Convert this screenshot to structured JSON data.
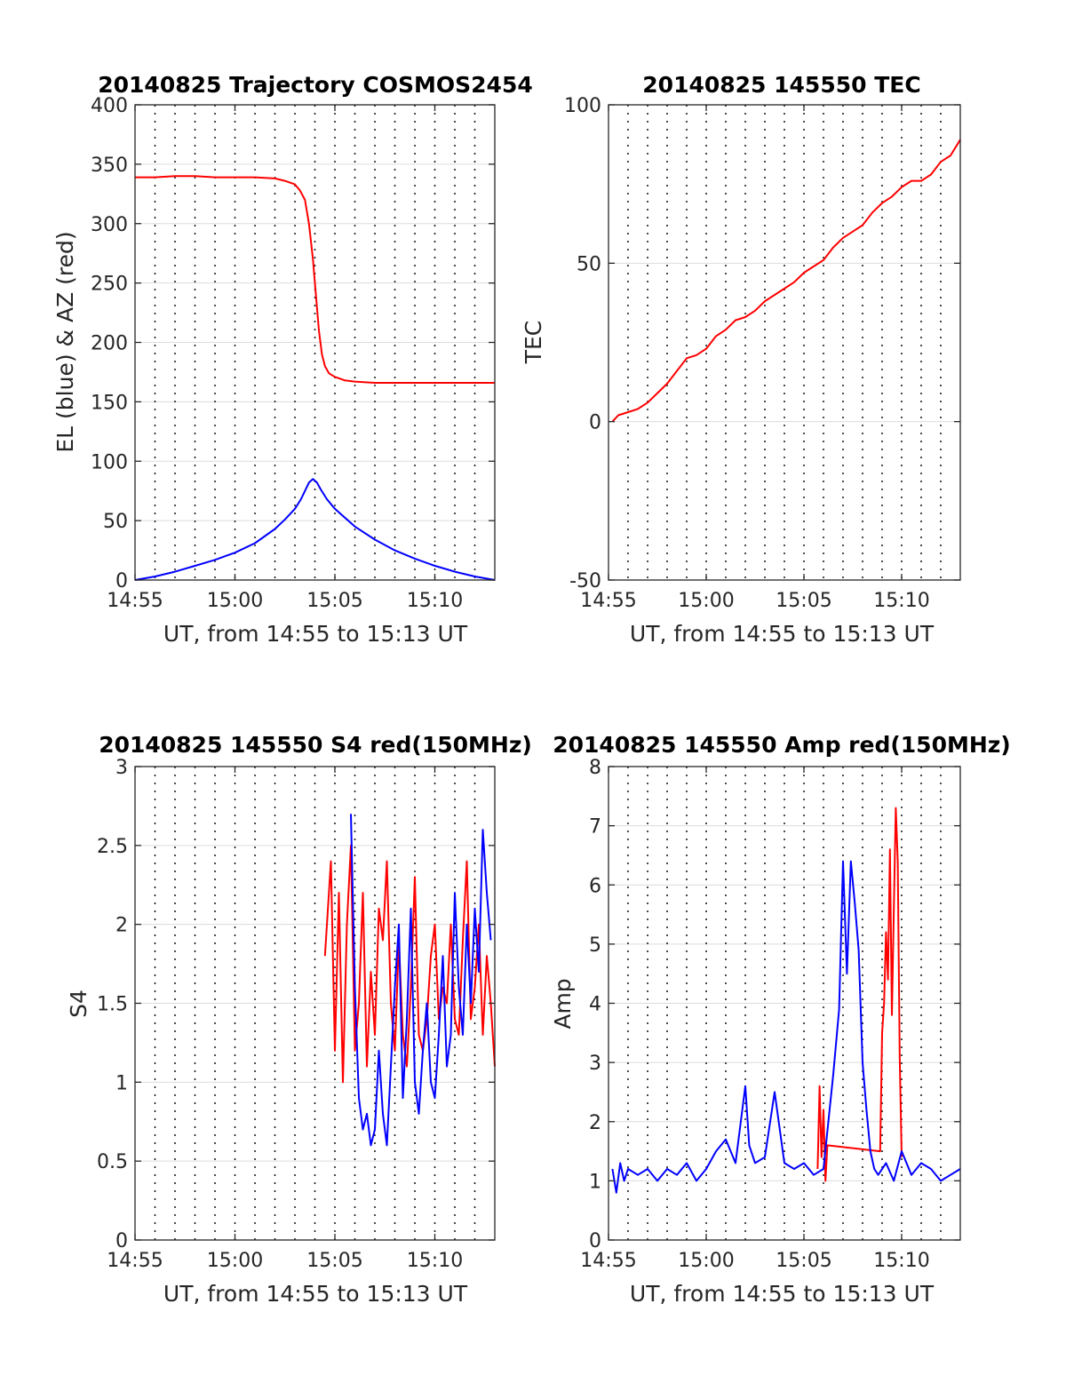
{
  "colors": {
    "red": "#ff0000",
    "blue": "#0000ff",
    "axis": "#262626",
    "hgrid": "#dcdcdc",
    "vgrid": "#000000"
  },
  "chart_data": [
    {
      "type": "line",
      "title": "20140825 Trajectory COSMOS2454",
      "xlabel": "UT, from 14:55 to 15:13 UT",
      "ylabel": "EL (blue) & AZ (red)",
      "x_unit": "minutes after 14:55",
      "xlim": [
        0,
        18
      ],
      "ylim": [
        0,
        400
      ],
      "xticks": [
        0,
        5,
        10,
        15
      ],
      "xtick_labels": [
        "14:55",
        "15:00",
        "15:05",
        "15:10"
      ],
      "yticks": [
        0,
        50,
        100,
        150,
        200,
        250,
        300,
        350,
        400
      ],
      "ytick_labels": [
        "0",
        "50",
        "100",
        "150",
        "200",
        "250",
        "300",
        "350",
        "400"
      ],
      "grid": "on",
      "series": [
        {
          "color": "#ff0000",
          "x": [
            0,
            1,
            2,
            3,
            4,
            5,
            6,
            7,
            7.5,
            8,
            8.25,
            8.5,
            8.7,
            8.9,
            9.05,
            9.2,
            9.35,
            9.5,
            9.7,
            10,
            10.5,
            11,
            12,
            13,
            14,
            15,
            16,
            17,
            18
          ],
          "y": [
            339,
            339,
            340,
            340,
            339,
            339,
            339,
            338,
            336,
            333,
            328,
            320,
            300,
            270,
            240,
            210,
            190,
            180,
            174,
            171,
            168,
            167,
            166,
            166,
            166,
            166,
            166,
            166,
            166
          ]
        },
        {
          "color": "#0000ff",
          "x": [
            0,
            1,
            2,
            3,
            4,
            5,
            6,
            7,
            7.5,
            8,
            8.3,
            8.5,
            8.7,
            8.9,
            9.1,
            9.3,
            9.6,
            10,
            11,
            12,
            13,
            14,
            15,
            16,
            17,
            18
          ],
          "y": [
            0,
            3,
            7,
            12,
            17,
            23,
            31,
            43,
            51,
            60,
            68,
            75,
            82,
            85,
            82,
            76,
            68,
            60,
            45,
            34,
            25,
            18,
            12,
            7,
            3,
            0
          ]
        }
      ]
    },
    {
      "type": "line",
      "title": "20140825 145550 TEC",
      "xlabel": "UT, from 14:55 to 15:13 UT",
      "ylabel": "TEC",
      "x_unit": "minutes after 14:55",
      "xlim": [
        0,
        18
      ],
      "ylim": [
        -50,
        100
      ],
      "xticks": [
        0,
        5,
        10,
        15
      ],
      "xtick_labels": [
        "14:55",
        "15:00",
        "15:05",
        "15:10"
      ],
      "yticks": [
        -50,
        0,
        50,
        100
      ],
      "ytick_labels": [
        "-50",
        "0",
        "50",
        "100"
      ],
      "grid": "on",
      "series": [
        {
          "color": "#ff0000",
          "x": [
            0.2,
            0.5,
            1,
            1.5,
            2,
            2.5,
            3,
            3.5,
            4,
            4.5,
            5,
            5.5,
            6,
            6.5,
            7,
            7.5,
            8,
            8.5,
            9,
            9.5,
            10,
            10.5,
            11,
            11.5,
            12,
            12.5,
            13,
            13.5,
            14,
            14.5,
            15,
            15.5,
            16,
            16.5,
            17,
            17.5,
            18
          ],
          "y": [
            0,
            2,
            3,
            4,
            6,
            9,
            12,
            16,
            20,
            21,
            23,
            27,
            29,
            32,
            33,
            35,
            38,
            40,
            42,
            44,
            47,
            49,
            51,
            55,
            58,
            60,
            62,
            66,
            69,
            71,
            74,
            76,
            76,
            78,
            82,
            84,
            89
          ]
        }
      ]
    },
    {
      "type": "line",
      "title": "20140825 145550 S4 red(150MHz)",
      "xlabel": "UT, from 14:55 to 15:13 UT",
      "ylabel": "S4",
      "x_unit": "minutes after 14:55",
      "xlim": [
        0,
        18
      ],
      "ylim": [
        0,
        3
      ],
      "xticks": [
        0,
        5,
        10,
        15
      ],
      "xtick_labels": [
        "14:55",
        "15:00",
        "15:05",
        "15:10"
      ],
      "yticks": [
        0,
        0.5,
        1,
        1.5,
        2,
        2.5,
        3
      ],
      "ytick_labels": [
        "0",
        "0.5",
        "1",
        "1.5",
        "2",
        "2.5",
        "3"
      ],
      "grid": "on",
      "series": [
        {
          "color": "#ff0000",
          "x": [
            9.5,
            9.8,
            10.0,
            10.2,
            10.4,
            10.6,
            10.8,
            11.0,
            11.2,
            11.4,
            11.6,
            11.8,
            12.0,
            12.2,
            12.4,
            12.6,
            12.8,
            13.0,
            13.2,
            13.4,
            13.6,
            13.8,
            14.0,
            14.2,
            14.4,
            14.6,
            14.8,
            15.0,
            15.2,
            15.4,
            15.6,
            15.8,
            16.0,
            16.2,
            16.4,
            16.6,
            16.8,
            17.0,
            17.2,
            17.4,
            17.6,
            17.8,
            18.0
          ],
          "y": [
            1.8,
            2.4,
            1.2,
            2.2,
            1.0,
            2.0,
            2.5,
            1.2,
            1.5,
            2.2,
            1.1,
            1.7,
            1.3,
            2.1,
            1.9,
            2.4,
            1.5,
            1.2,
            1.9,
            1.3,
            1.1,
            1.6,
            2.3,
            1.3,
            1.2,
            1.4,
            1.8,
            2.0,
            1.4,
            1.6,
            1.5,
            2.0,
            1.4,
            1.3,
            1.9,
            2.4,
            1.4,
            1.6,
            2.0,
            1.3,
            1.8,
            1.5,
            1.1
          ]
        },
        {
          "color": "#0000ff",
          "x": [
            10.8,
            11.0,
            11.2,
            11.4,
            11.6,
            11.8,
            12.0,
            12.2,
            12.4,
            12.6,
            12.8,
            13.0,
            13.2,
            13.4,
            13.6,
            13.8,
            14.0,
            14.2,
            14.4,
            14.6,
            14.8,
            15.0,
            15.2,
            15.4,
            15.6,
            15.8,
            16.0,
            16.2,
            16.4,
            16.6,
            16.8,
            17.0,
            17.2,
            17.4,
            17.6,
            17.8
          ],
          "y": [
            2.7,
            1.6,
            0.9,
            0.7,
            0.8,
            0.6,
            0.7,
            1.2,
            0.8,
            0.6,
            1.1,
            1.6,
            2.0,
            0.9,
            1.4,
            2.1,
            1.0,
            0.8,
            1.2,
            1.5,
            1.0,
            0.9,
            1.3,
            1.8,
            1.1,
            1.3,
            2.2,
            1.6,
            1.3,
            2.0,
            1.5,
            2.1,
            1.7,
            2.6,
            2.2,
            1.9
          ]
        }
      ]
    },
    {
      "type": "line",
      "title": "20140825 145550 Amp red(150MHz)",
      "xlabel": "UT, from 14:55 to 15:13 UT",
      "ylabel": "Amp",
      "x_unit": "minutes after 14:55",
      "xlim": [
        0,
        18
      ],
      "ylim": [
        0,
        8
      ],
      "xticks": [
        0,
        5,
        10,
        15
      ],
      "xtick_labels": [
        "14:55",
        "15:00",
        "15:05",
        "15:10"
      ],
      "yticks": [
        0,
        1,
        2,
        3,
        4,
        5,
        6,
        7,
        8
      ],
      "ytick_labels": [
        "0",
        "1",
        "2",
        "3",
        "4",
        "5",
        "6",
        "7",
        "8"
      ],
      "grid": "on",
      "series": [
        {
          "color": "#ff0000",
          "x": [
            10.7,
            10.8,
            10.9,
            11.0,
            11.1,
            11.2,
            13.9,
            14.0,
            14.1,
            14.2,
            14.3,
            14.4,
            14.5,
            14.6,
            14.7,
            14.8,
            14.9,
            15.0
          ],
          "y": [
            1.2,
            2.6,
            1.4,
            2.2,
            1.0,
            1.6,
            1.5,
            3.5,
            4.0,
            5.2,
            4.4,
            6.6,
            3.8,
            5.6,
            7.3,
            6.4,
            3.1,
            1.4
          ]
        },
        {
          "color": "#0000ff",
          "x": [
            0.2,
            0.4,
            0.6,
            0.8,
            1.0,
            1.5,
            2.0,
            2.5,
            3.0,
            3.5,
            4.0,
            4.5,
            5.0,
            5.5,
            6.0,
            6.5,
            7.0,
            7.2,
            7.5,
            8.0,
            8.5,
            9.0,
            9.5,
            10.0,
            10.5,
            11.0,
            11.5,
            11.8,
            12.0,
            12.2,
            12.4,
            12.6,
            12.8,
            13.0,
            13.2,
            13.4,
            13.6,
            13.8,
            14.2,
            14.6,
            15.0,
            15.5,
            16.0,
            16.5,
            17.0,
            17.5,
            18.0
          ],
          "y": [
            1.2,
            0.8,
            1.3,
            1.0,
            1.2,
            1.1,
            1.2,
            1.0,
            1.2,
            1.1,
            1.3,
            1.0,
            1.2,
            1.5,
            1.7,
            1.3,
            2.6,
            1.6,
            1.3,
            1.4,
            2.5,
            1.3,
            1.2,
            1.3,
            1.1,
            1.2,
            2.8,
            3.9,
            6.4,
            4.5,
            6.4,
            5.7,
            4.9,
            3.0,
            2.2,
            1.5,
            1.2,
            1.1,
            1.3,
            1.0,
            1.5,
            1.1,
            1.3,
            1.2,
            1.0,
            1.1,
            1.2
          ]
        }
      ]
    }
  ]
}
